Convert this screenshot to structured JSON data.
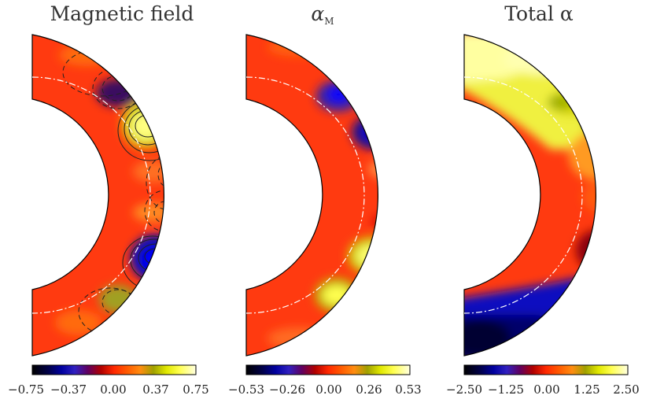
{
  "figure": {
    "panels": [
      {
        "id": "magnetic-field",
        "title": "Magnetic field",
        "colorbar": {
          "ticks": [
            "−0.75",
            "−0.37",
            "0.00",
            "0.37",
            "0.75"
          ],
          "range": [
            -0.75,
            0.75
          ]
        }
      },
      {
        "id": "alpha-m",
        "title": "α",
        "title_subscript": "M",
        "colorbar": {
          "ticks": [
            "−0.53",
            "−0.26",
            "0.00",
            "0.26",
            "0.53"
          ],
          "range": [
            -0.53,
            0.53
          ]
        }
      },
      {
        "id": "total-alpha",
        "title": "Total α",
        "colorbar": {
          "ticks": [
            "−2.50",
            "−1.25",
            "0.00",
            "1.25",
            "2.50"
          ],
          "range": [
            -2.5,
            2.5
          ]
        }
      }
    ],
    "colormap": [
      "#000000",
      "#00004a",
      "#00008b",
      "#2020d0",
      "#5020a0",
      "#8b0030",
      "#c00000",
      "#e81800",
      "#ff3000",
      "#ff5a00",
      "#ff8000",
      "#e09030",
      "#a0a000",
      "#d8e000",
      "#ffff30",
      "#ffff90",
      "#ffffe0"
    ],
    "colors": {
      "background": "#ff3a10",
      "outline": "#000000",
      "dash_line": "#ffffff"
    }
  }
}
